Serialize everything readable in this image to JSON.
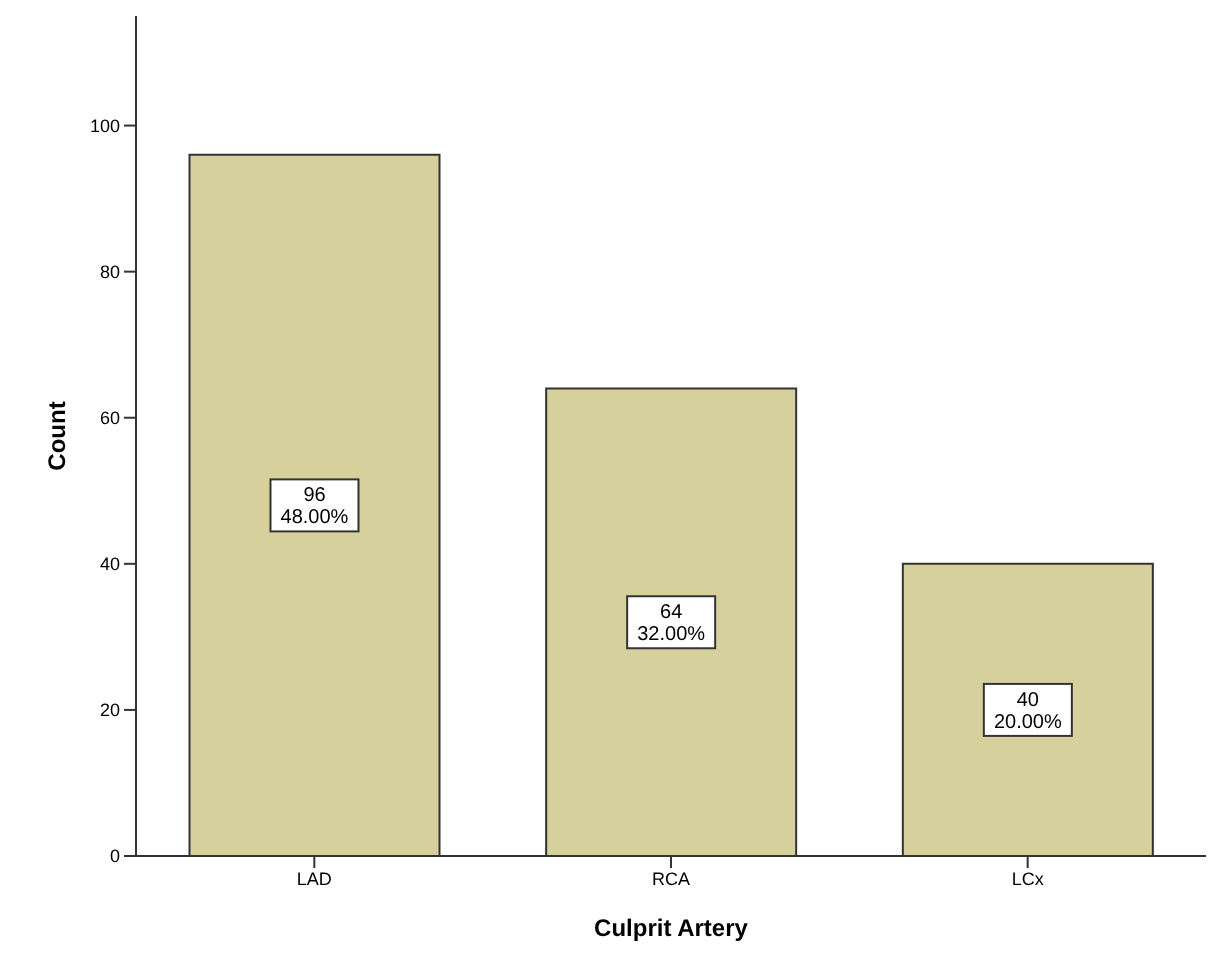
{
  "chart_data": {
    "type": "bar",
    "xlabel": "Culprit Artery",
    "ylabel": "Count",
    "categories": [
      "LAD",
      "RCA",
      "LCx"
    ],
    "values": [
      96,
      64,
      40
    ],
    "value_labels": [
      "96\n48.00%",
      "64\n32.00%",
      "40\n20.00%"
    ],
    "color": "#d6d19c",
    "ylim": [
      0,
      115
    ],
    "yticks": [
      0,
      20,
      40,
      60,
      80,
      100
    ],
    "grid": false,
    "legend": false
  }
}
